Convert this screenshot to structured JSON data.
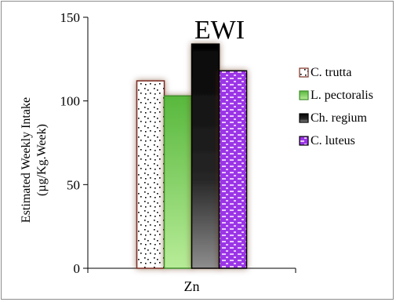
{
  "chart_data": {
    "type": "bar",
    "title": "EWI",
    "xlabel": "",
    "ylabel": "Estimated Weekly Intake (µg/Kg.Week)",
    "ylabel_lines": [
      "Estimated Weekly Intake",
      "(µg/Kg.Week)"
    ],
    "categories": [
      "Zn"
    ],
    "ylim": [
      0,
      150
    ],
    "yticks": [
      0,
      50,
      100,
      150
    ],
    "grid": false,
    "legend_position": "right",
    "series": [
      {
        "name": "C. trutta",
        "values": [
          112
        ],
        "pattern": "dots",
        "color": "#ffffff",
        "edge": "#7a2b20"
      },
      {
        "name": "L. pectoralis",
        "values": [
          103
        ],
        "pattern": "green-gradient",
        "color": "#6ac24a",
        "edge": "#3f8d2b"
      },
      {
        "name": "Ch. regium",
        "values": [
          134
        ],
        "pattern": "black-gradient",
        "color": "#111111",
        "edge": "#000000"
      },
      {
        "name": "C. luteus",
        "values": [
          118
        ],
        "pattern": "purple-bricks",
        "color": "#9b35e6",
        "edge": "#000000"
      }
    ]
  }
}
